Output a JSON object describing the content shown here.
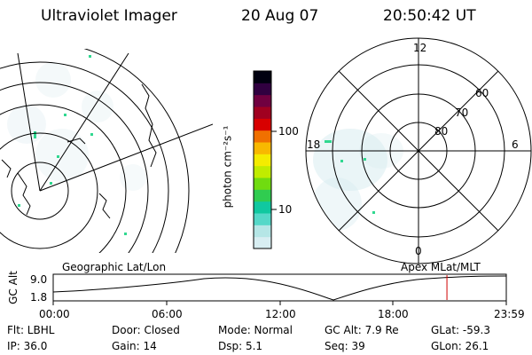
{
  "header": {
    "instrument": "Ultraviolet Imager",
    "date": "20 Aug 07",
    "time": "20:50:42 UT"
  },
  "geo_map": {
    "label": "Geographic Lat/Lon"
  },
  "polar_plot": {
    "label": "Apex MLat/MLT",
    "mlt_labels": {
      "top": "12",
      "left": "18",
      "right": "6",
      "bottom": "0"
    },
    "lat_labels": [
      "60",
      "70",
      "80"
    ]
  },
  "colorbar": {
    "unit": "photon cm⁻²s⁻¹",
    "ticks": [
      "100",
      "10"
    ],
    "colors": [
      "#d8eef2",
      "#b5e6e6",
      "#55d8c8",
      "#10c8a0",
      "#30cc50",
      "#70dc10",
      "#c0ec00",
      "#f4ec00",
      "#f8b800",
      "#f07000",
      "#d80000",
      "#a00020",
      "#700040",
      "#300040",
      "#000010"
    ]
  },
  "orbit": {
    "ylabel": "GC Alt",
    "yticks": [
      "9.0",
      "1.8"
    ],
    "xticks": [
      "00:00",
      "06:00",
      "12:00",
      "18:00",
      "23:59"
    ],
    "current_time_fraction": 0.869,
    "marker_color": "#d00000"
  },
  "info": {
    "filter": "Flt: LBHL",
    "ip": "IP: 36.0",
    "door": "Door: Closed",
    "gain": "Gain: 14",
    "mode": "Mode: Normal",
    "dsp": "Dsp:    5.1",
    "gc_alt": "GC Alt: 7.9 Re",
    "seq": "Seq: 39",
    "glat": "GLat: -59.3",
    "glon": "GLon:  26.1"
  }
}
